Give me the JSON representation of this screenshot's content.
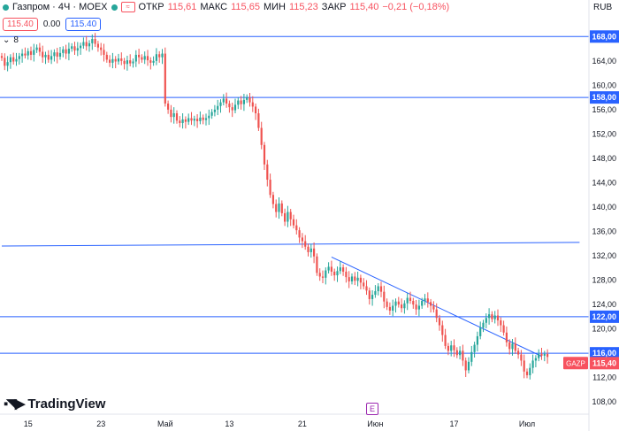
{
  "header": {
    "symbol_title": "Газпром · 4Ч · MOEX",
    "open_label": "ОТКР",
    "open_value": "115,61",
    "high_label": "МАКС",
    "high_value": "115,65",
    "low_label": "МИН",
    "low_value": "115,23",
    "close_label": "ЗАКР",
    "close_value": "115,40",
    "change_value": "−0,21 (−0,18%)",
    "currency": "RUB"
  },
  "toolbar": {
    "sell_price": "115.40",
    "spread": "0.00",
    "buy_price": "115.40",
    "indicators_count": "8"
  },
  "branding": {
    "logo_text": "TradingView"
  },
  "earnings_badge": "E",
  "colors": {
    "up": "#26a69a",
    "down": "#ef5350",
    "line": "#2962ff",
    "price_tag": "#f7525f"
  },
  "chart_data": {
    "type": "candlestick",
    "symbol": "GAZP",
    "last_price": 115.4,
    "last_price_label": "115,40",
    "y_range": [
      106,
      174
    ],
    "y_ticks": [
      {
        "value": 108,
        "label": "108,00"
      },
      {
        "value": 112,
        "label": "112,00"
      },
      {
        "value": 116,
        "label": "116,00"
      },
      {
        "value": 120,
        "label": "120,00"
      },
      {
        "value": 124,
        "label": "124,00"
      },
      {
        "value": 128,
        "label": "128,00"
      },
      {
        "value": 132,
        "label": "132,00"
      },
      {
        "value": 136,
        "label": "136,00"
      },
      {
        "value": 140,
        "label": "140,00"
      },
      {
        "value": 144,
        "label": "144,00"
      },
      {
        "value": 148,
        "label": "148,00"
      },
      {
        "value": 152,
        "label": "152,00"
      },
      {
        "value": 156,
        "label": "156,00"
      },
      {
        "value": 160,
        "label": "160,00"
      },
      {
        "value": 164,
        "label": "164,00"
      }
    ],
    "x_ticks": [
      {
        "bar": 9,
        "label": "15"
      },
      {
        "bar": 34,
        "label": "23"
      },
      {
        "bar": 56,
        "label": "Май"
      },
      {
        "bar": 78,
        "label": "13"
      },
      {
        "bar": 103,
        "label": "21"
      },
      {
        "bar": 128,
        "label": "Июн"
      },
      {
        "bar": 155,
        "label": "17"
      },
      {
        "bar": 180,
        "label": "Июл"
      }
    ],
    "horizontal_levels": [
      {
        "value": 168.0,
        "label": "168,00"
      },
      {
        "value": 158.0,
        "label": "158,00"
      },
      {
        "value": 122.0,
        "label": "122,00"
      },
      {
        "value": 116.0,
        "label": "116,00"
      }
    ],
    "trend_lines": [
      {
        "from": [
          0,
          133.6
        ],
        "to": [
          198,
          134.2
        ]
      },
      {
        "from": [
          113,
          131.8
        ],
        "to": [
          185,
          115.5
        ]
      }
    ],
    "bars_per_step": 1,
    "closes": [
      164.5,
      163.2,
      163.8,
      164.6,
      163.9,
      164.3,
      164.8,
      165.2,
      164.9,
      165.6,
      165.0,
      165.8,
      166.2,
      165.5,
      164.6,
      165.0,
      164.2,
      164.8,
      165.4,
      164.7,
      165.3,
      165.9,
      165.2,
      166.0,
      166.4,
      165.7,
      166.1,
      166.5,
      167.1,
      166.4,
      166.9,
      167.6,
      166.8,
      166.2,
      165.8,
      165.0,
      164.2,
      163.7,
      164.3,
      163.9,
      164.4,
      164.0,
      163.5,
      164.1,
      163.6,
      163.9,
      165.0,
      164.6,
      164.2,
      164.8,
      164.1,
      163.7,
      164.0,
      165.1,
      164.6,
      165.2,
      157.0,
      156.0,
      154.8,
      155.4,
      154.2,
      153.8,
      154.4,
      154.0,
      154.6,
      154.2,
      154.5,
      154.1,
      154.7,
      154.3,
      154.6,
      155.0,
      155.6,
      156.0,
      156.6,
      157.2,
      157.8,
      157.0,
      156.4,
      155.9,
      156.8,
      157.5,
      156.9,
      157.6,
      158.0,
      157.2,
      156.5,
      155.4,
      153.0,
      150.2,
      147.0,
      144.5,
      142.0,
      140.5,
      139.2,
      140.6,
      139.0,
      137.6,
      139.2,
      138.0,
      137.0,
      136.2,
      135.0,
      134.4,
      133.5,
      132.6,
      133.2,
      131.9,
      129.2,
      128.6,
      128.4,
      129.6,
      130.2,
      129.4,
      128.8,
      129.5,
      130.1,
      129.4,
      128.5,
      127.8,
      128.6,
      127.9,
      128.4,
      127.6,
      127.0,
      126.3,
      124.9,
      125.6,
      126.2,
      127.0,
      126.1,
      124.5,
      123.6,
      123.0,
      123.8,
      124.5,
      124.0,
      123.4,
      124.2,
      125.1,
      124.6,
      124.0,
      123.2,
      123.8,
      124.6,
      125.0,
      124.4,
      123.8,
      123.2,
      121.8,
      120.6,
      119.0,
      117.2,
      116.4,
      117.3,
      116.5,
      115.7,
      116.4,
      114.8,
      113.2,
      114.6,
      116.2,
      117.4,
      118.8,
      120.2,
      121.0,
      121.8,
      122.4,
      121.6,
      122.2,
      121.4,
      120.6,
      119.4,
      117.8,
      116.7,
      117.6,
      116.4,
      115.8,
      114.8,
      113.0,
      112.4,
      113.6,
      114.8,
      115.2,
      115.9,
      115.6,
      115.9,
      115.4
    ]
  }
}
